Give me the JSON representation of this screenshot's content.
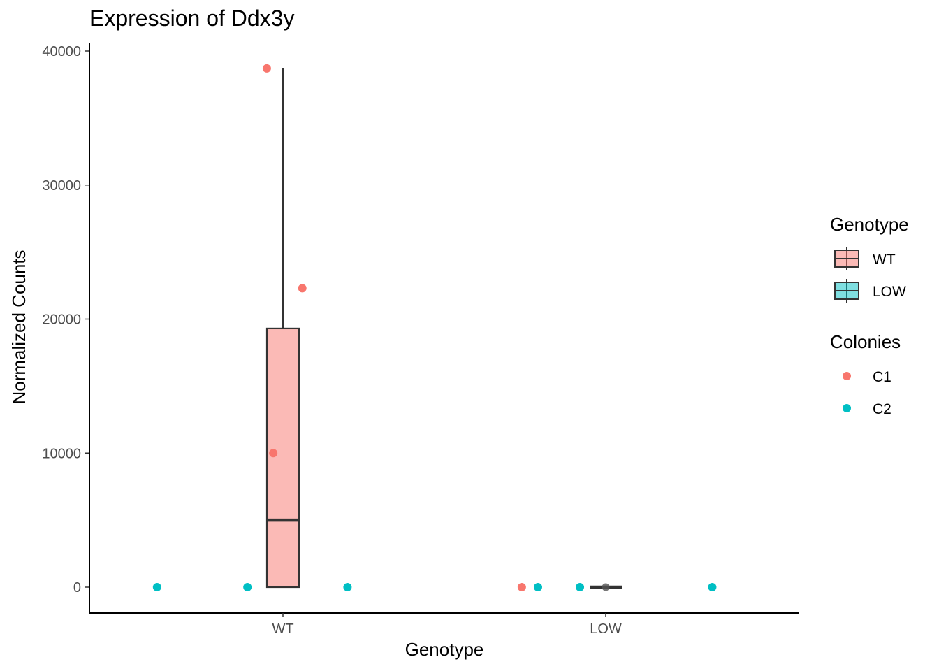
{
  "chart_data": {
    "type": "box",
    "title": "Expression of Ddx3y",
    "xlabel": "Genotype",
    "ylabel": "Normalized Counts",
    "categories": [
      "WT",
      "LOW"
    ],
    "ylim": [
      -1900,
      40500
    ],
    "yticks": [
      0,
      10000,
      20000,
      30000,
      40000
    ],
    "grid": false,
    "boxes": [
      {
        "category": "WT",
        "min": 0,
        "q1": 0,
        "median": 5000,
        "q3": 19300,
        "max": 38700,
        "color": "#F8766D"
      },
      {
        "category": "LOW",
        "min": 0,
        "q1": 0,
        "median": 0,
        "q3": 0,
        "max": 0,
        "color": "#00BFC4"
      }
    ],
    "points": [
      {
        "category": "WT",
        "colony": "C1",
        "jitter": -0.05,
        "y": 38700
      },
      {
        "category": "WT",
        "colony": "C1",
        "jitter": 0.06,
        "y": 22300
      },
      {
        "category": "WT",
        "colony": "C1",
        "jitter": -0.03,
        "y": 10000
      },
      {
        "category": "WT",
        "colony": "C2",
        "jitter": -0.39,
        "y": 0
      },
      {
        "category": "WT",
        "colony": "C2",
        "jitter": -0.11,
        "y": 0
      },
      {
        "category": "WT",
        "colony": "C2",
        "jitter": 0.2,
        "y": 0
      },
      {
        "category": "LOW",
        "colony": "C1",
        "jitter": -0.26,
        "y": 0
      },
      {
        "category": "LOW",
        "colony": "C2",
        "jitter": -0.21,
        "y": 0
      },
      {
        "category": "LOW",
        "colony": "C2",
        "jitter": -0.08,
        "y": 0
      },
      {
        "category": "LOW",
        "colony": "C2",
        "jitter": 0.33,
        "y": 0
      }
    ],
    "legends": [
      {
        "title": "Genotype",
        "kind": "box",
        "entries": [
          {
            "label": "WT",
            "color": "#F8766D"
          },
          {
            "label": "LOW",
            "color": "#00BFC4"
          }
        ]
      },
      {
        "title": "Colonies",
        "kind": "point",
        "entries": [
          {
            "label": "C1",
            "color": "#F8766D"
          },
          {
            "label": "C2",
            "color": "#00BFC4"
          }
        ]
      }
    ],
    "legend_position": "right"
  }
}
